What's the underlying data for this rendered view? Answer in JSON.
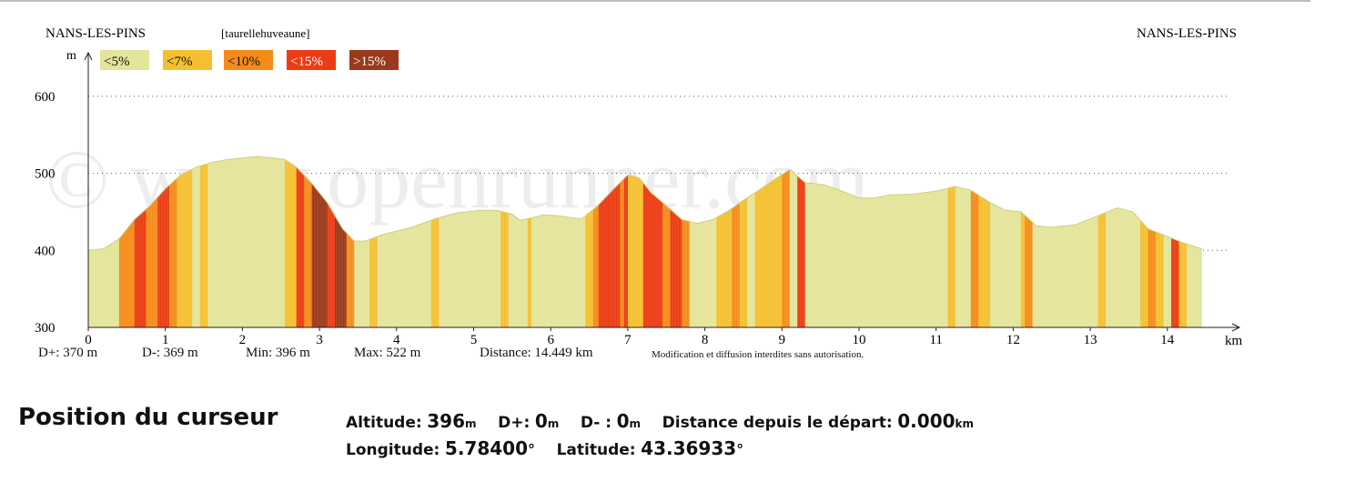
{
  "header": {
    "start_town": "NANS-LES-PINS",
    "end_town": "NANS-LES-PINS",
    "author": "[taurellehuveaune]"
  },
  "watermark": "© www.openrunner.com",
  "legend": [
    {
      "label": "<5%",
      "color": "#e4e49a"
    },
    {
      "label": "<7%",
      "color": "#f5c030"
    },
    {
      "label": "<10%",
      "color": "#f58c1a"
    },
    {
      "label": "<15%",
      "color": "#ec3c14"
    },
    {
      "label": ">15%",
      "color": "#9a3a1a"
    }
  ],
  "stats": {
    "d_plus": "D+: 370 m",
    "d_minus": "D-: 369 m",
    "min": "Min: 396 m",
    "max": "Max: 522 m",
    "distance": "Distance: 14.449 km",
    "notice": "Modification et diffusion interdites sans autorisation."
  },
  "cursor": {
    "title": "Position du curseur",
    "altitude_label": "Altitude:",
    "altitude_value": "396",
    "altitude_unit": "m",
    "dplus_label": "D+:",
    "dplus_value": "0",
    "dplus_unit": "m",
    "dminus_label": "D- :",
    "dminus_value": "0",
    "dminus_unit": "m",
    "distance_label": "Distance depuis le départ:",
    "distance_value": "0.000",
    "distance_unit": "km",
    "longitude_label": "Longitude:",
    "longitude_value": "5.78400",
    "latitude_label": "Latitude:",
    "latitude_value": "43.36933",
    "degree_symbol": "°"
  },
  "chart_data": {
    "type": "area",
    "xlabel": "km",
    "ylabel": "m",
    "xlim": [
      0,
      15
    ],
    "ylim": [
      300,
      630
    ],
    "x_ticks": [
      0,
      1,
      2,
      3,
      4,
      5,
      6,
      7,
      8,
      9,
      10,
      11,
      12,
      13,
      14
    ],
    "y_ticks": [
      300,
      400,
      500,
      600
    ],
    "grid": "dotted-horizontal",
    "profile": [
      [
        0,
        400
      ],
      [
        0.2,
        402
      ],
      [
        0.4,
        415
      ],
      [
        0.6,
        440
      ],
      [
        0.8,
        458
      ],
      [
        1.0,
        480
      ],
      [
        1.2,
        498
      ],
      [
        1.4,
        508
      ],
      [
        1.6,
        514
      ],
      [
        1.8,
        518
      ],
      [
        2.0,
        520
      ],
      [
        2.2,
        522
      ],
      [
        2.4,
        520
      ],
      [
        2.55,
        518
      ],
      [
        2.7,
        508
      ],
      [
        2.9,
        487
      ],
      [
        3.1,
        462
      ],
      [
        3.3,
        428
      ],
      [
        3.45,
        412
      ],
      [
        3.6,
        412
      ],
      [
        3.8,
        420
      ],
      [
        4.0,
        425
      ],
      [
        4.2,
        430
      ],
      [
        4.5,
        441
      ],
      [
        4.8,
        449
      ],
      [
        5.1,
        452
      ],
      [
        5.3,
        452
      ],
      [
        5.5,
        447
      ],
      [
        5.6,
        439
      ],
      [
        5.75,
        442
      ],
      [
        5.9,
        446
      ],
      [
        6.1,
        445
      ],
      [
        6.3,
        442
      ],
      [
        6.4,
        441
      ],
      [
        6.6,
        457
      ],
      [
        6.8,
        478
      ],
      [
        7.0,
        498
      ],
      [
        7.15,
        494
      ],
      [
        7.3,
        475
      ],
      [
        7.5,
        458
      ],
      [
        7.7,
        440
      ],
      [
        7.9,
        435
      ],
      [
        8.1,
        440
      ],
      [
        8.3,
        451
      ],
      [
        8.5,
        465
      ],
      [
        8.7,
        478
      ],
      [
        8.9,
        492
      ],
      [
        9.1,
        505
      ],
      [
        9.3,
        488
      ],
      [
        9.55,
        485
      ],
      [
        9.8,
        476
      ],
      [
        10.0,
        468
      ],
      [
        10.2,
        468
      ],
      [
        10.4,
        472
      ],
      [
        10.7,
        473
      ],
      [
        11.0,
        477
      ],
      [
        11.25,
        483
      ],
      [
        11.45,
        478
      ],
      [
        11.7,
        462
      ],
      [
        11.9,
        452
      ],
      [
        12.1,
        450
      ],
      [
        12.3,
        432
      ],
      [
        12.5,
        430
      ],
      [
        12.8,
        433
      ],
      [
        13.1,
        445
      ],
      [
        13.35,
        455
      ],
      [
        13.55,
        450
      ],
      [
        13.75,
        428
      ],
      [
        13.95,
        420
      ],
      [
        14.2,
        410
      ],
      [
        14.449,
        402
      ]
    ],
    "slope_segments": [
      [
        0,
        0.4,
        0
      ],
      [
        0.4,
        0.6,
        2
      ],
      [
        0.6,
        0.75,
        3
      ],
      [
        0.75,
        0.9,
        2
      ],
      [
        0.9,
        1.05,
        3
      ],
      [
        1.05,
        1.15,
        2
      ],
      [
        1.15,
        1.35,
        1
      ],
      [
        1.35,
        1.45,
        0
      ],
      [
        1.45,
        1.55,
        1
      ],
      [
        1.55,
        2.55,
        0
      ],
      [
        2.55,
        2.7,
        1
      ],
      [
        2.7,
        2.8,
        3
      ],
      [
        2.8,
        2.9,
        2
      ],
      [
        2.9,
        3.1,
        4
      ],
      [
        3.1,
        3.2,
        3
      ],
      [
        3.2,
        3.35,
        4
      ],
      [
        3.35,
        3.45,
        2
      ],
      [
        3.45,
        3.65,
        0
      ],
      [
        3.65,
        3.75,
        1
      ],
      [
        3.75,
        4.45,
        0
      ],
      [
        4.45,
        4.55,
        1
      ],
      [
        4.55,
        5.35,
        0
      ],
      [
        5.35,
        5.45,
        1
      ],
      [
        5.45,
        5.7,
        0
      ],
      [
        5.7,
        5.75,
        1
      ],
      [
        5.75,
        6.45,
        0
      ],
      [
        6.45,
        6.55,
        1
      ],
      [
        6.55,
        6.62,
        2
      ],
      [
        6.62,
        6.9,
        3
      ],
      [
        6.9,
        6.95,
        2
      ],
      [
        6.95,
        7.0,
        3
      ],
      [
        7.0,
        7.2,
        1
      ],
      [
        7.2,
        7.45,
        3
      ],
      [
        7.45,
        7.55,
        2
      ],
      [
        7.55,
        7.7,
        3
      ],
      [
        7.7,
        7.8,
        2
      ],
      [
        7.8,
        8.15,
        0
      ],
      [
        8.15,
        8.35,
        1
      ],
      [
        8.35,
        8.45,
        2
      ],
      [
        8.45,
        8.55,
        1
      ],
      [
        8.55,
        8.65,
        0
      ],
      [
        8.65,
        9.0,
        1
      ],
      [
        9.0,
        9.1,
        2
      ],
      [
        9.1,
        9.2,
        0
      ],
      [
        9.2,
        9.3,
        3
      ],
      [
        9.3,
        11.15,
        0
      ],
      [
        11.15,
        11.25,
        1
      ],
      [
        11.25,
        11.45,
        0
      ],
      [
        11.45,
        11.55,
        2
      ],
      [
        11.55,
        11.7,
        1
      ],
      [
        11.7,
        12.1,
        0
      ],
      [
        12.1,
        12.15,
        1
      ],
      [
        12.15,
        12.25,
        2
      ],
      [
        12.25,
        13.1,
        0
      ],
      [
        13.1,
        13.2,
        1
      ],
      [
        13.2,
        13.65,
        0
      ],
      [
        13.65,
        13.75,
        1
      ],
      [
        13.75,
        13.85,
        2
      ],
      [
        13.85,
        13.95,
        1
      ],
      [
        13.95,
        14.05,
        0
      ],
      [
        14.05,
        14.15,
        3
      ],
      [
        14.15,
        14.25,
        1
      ],
      [
        14.25,
        14.449,
        0
      ]
    ]
  }
}
